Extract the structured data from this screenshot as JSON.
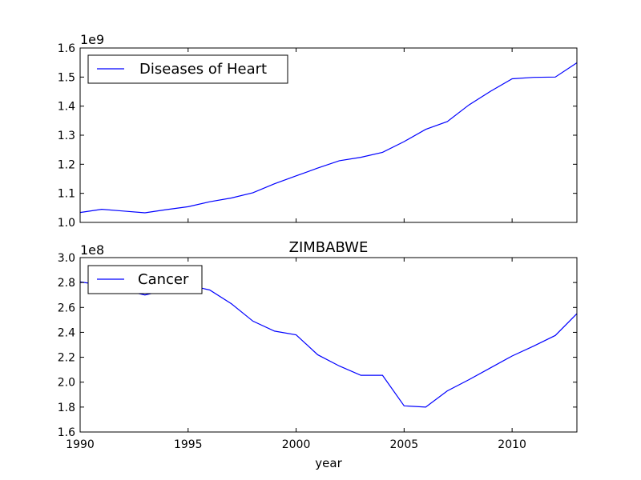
{
  "chart_data": [
    {
      "type": "line",
      "title": "",
      "xlabel": "",
      "ylabel": "",
      "multiplier_label": "1e9",
      "x": [
        1990,
        1991,
        1992,
        1993,
        1994,
        1995,
        1996,
        1997,
        1998,
        1999,
        2000,
        2001,
        2002,
        2003,
        2004,
        2005,
        2006,
        2007,
        2008,
        2009,
        2010,
        2011,
        2012,
        2013
      ],
      "series": [
        {
          "name": "Diseases of Heart",
          "color": "#0000ff",
          "values": [
            1034000000,
            1045000000,
            1039000000,
            1033000000,
            1044000000,
            1054000000,
            1071000000,
            1084000000,
            1102000000,
            1133000000,
            1160000000,
            1187000000,
            1212000000,
            1224000000,
            1241000000,
            1278000000,
            1320000000,
            1347000000,
            1404000000,
            1451000000,
            1494000000,
            1499000000,
            1500000000,
            1549000000
          ]
        }
      ],
      "xlim": [
        1990,
        2013
      ],
      "ylim": [
        1000000000,
        1600000000
      ],
      "yticks": [
        "1.0",
        "1.1",
        "1.2",
        "1.3",
        "1.4",
        "1.5",
        "1.6"
      ],
      "xticks_visible": false,
      "grid": false,
      "legend": "upper-left"
    },
    {
      "type": "line",
      "title": "ZIMBABWE",
      "xlabel": "year",
      "ylabel": "",
      "multiplier_label": "1e8",
      "x": [
        1990,
        1991,
        1992,
        1993,
        1994,
        1995,
        1996,
        1997,
        1998,
        1999,
        2000,
        2001,
        2002,
        2003,
        2004,
        2005,
        2006,
        2007,
        2008,
        2009,
        2010,
        2011,
        2012,
        2013
      ],
      "series": [
        {
          "name": "Cancer",
          "color": "#0000ff",
          "values": [
            280500000,
            278000000,
            274000000,
            270000000,
            274000000,
            278000000,
            274000000,
            263000000,
            249000000,
            241000000,
            238000000,
            222000000,
            213000000,
            205500000,
            205500000,
            181000000,
            180000000,
            193000000,
            202000000,
            211500000,
            221000000,
            229000000,
            237500000,
            255000000
          ]
        }
      ],
      "xlim": [
        1990,
        2013
      ],
      "ylim": [
        160000000,
        300000000
      ],
      "yticks": [
        "1.6",
        "1.8",
        "2.0",
        "2.2",
        "2.4",
        "2.6",
        "2.8",
        "3.0"
      ],
      "xticks": [
        "1990",
        "1995",
        "2000",
        "2005",
        "2010"
      ],
      "xticks_visible": true,
      "grid": false,
      "legend": "upper-left"
    }
  ]
}
